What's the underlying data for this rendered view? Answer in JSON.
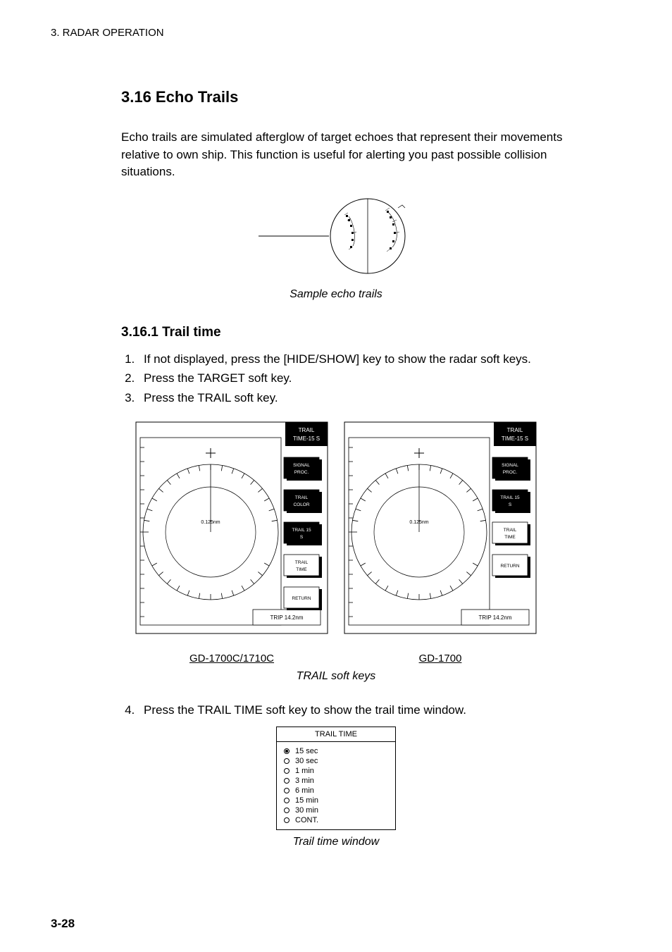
{
  "header": "3. RADAR OPERATION",
  "section_title": "3.16 Echo Trails",
  "intro": "Echo trails are simulated afterglow of target echoes that represent their movements relative to own ship. This function is useful for alerting you past possible collision situations.",
  "sample_caption": "Sample echo trails",
  "subsub": "3.16.1 Trail time",
  "steps": [
    "If not displayed, press the [HIDE/SHOW] key to show the radar soft keys.",
    "Press the TARGET soft key.",
    "Press the TRAIL soft key."
  ],
  "radar": {
    "left": {
      "softkeys": [
        "SIGNAL PROC.",
        "TRAIL COLOR",
        "TRAIL 15 S",
        "TRAIL TIME",
        "RETURN"
      ],
      "topbox": "TRAIL\nTIME-15 S",
      "bottomright": "TRIP  14.2nm",
      "scale_center": "0.125nm",
      "caption": "GD-1700C/1710C"
    },
    "right": {
      "softkeys": [
        "SIGNAL PROC.",
        "TRAIL 15 S",
        "TRAIL TIME",
        "RETURN"
      ],
      "topbox": "TRAIL\nTIME-15 S",
      "bottomright": "TRIP  14.2nm",
      "scale_center": "0.125nm",
      "caption": "GD-1700"
    },
    "caption": "TRAIL soft keys"
  },
  "step4": "Press the TRAIL TIME soft key to show the trail time window.",
  "trail_window": {
    "title": "TRAIL TIME",
    "options": [
      "15 sec",
      "30 sec",
      "1 min",
      "3 min",
      "6 min",
      "15 min",
      "30 min",
      "CONT."
    ],
    "selected": 0
  },
  "trail_window_caption": "Trail time window",
  "page": "3-28",
  "colors": {
    "page_bg": "#ffffff",
    "text": "#000000"
  }
}
